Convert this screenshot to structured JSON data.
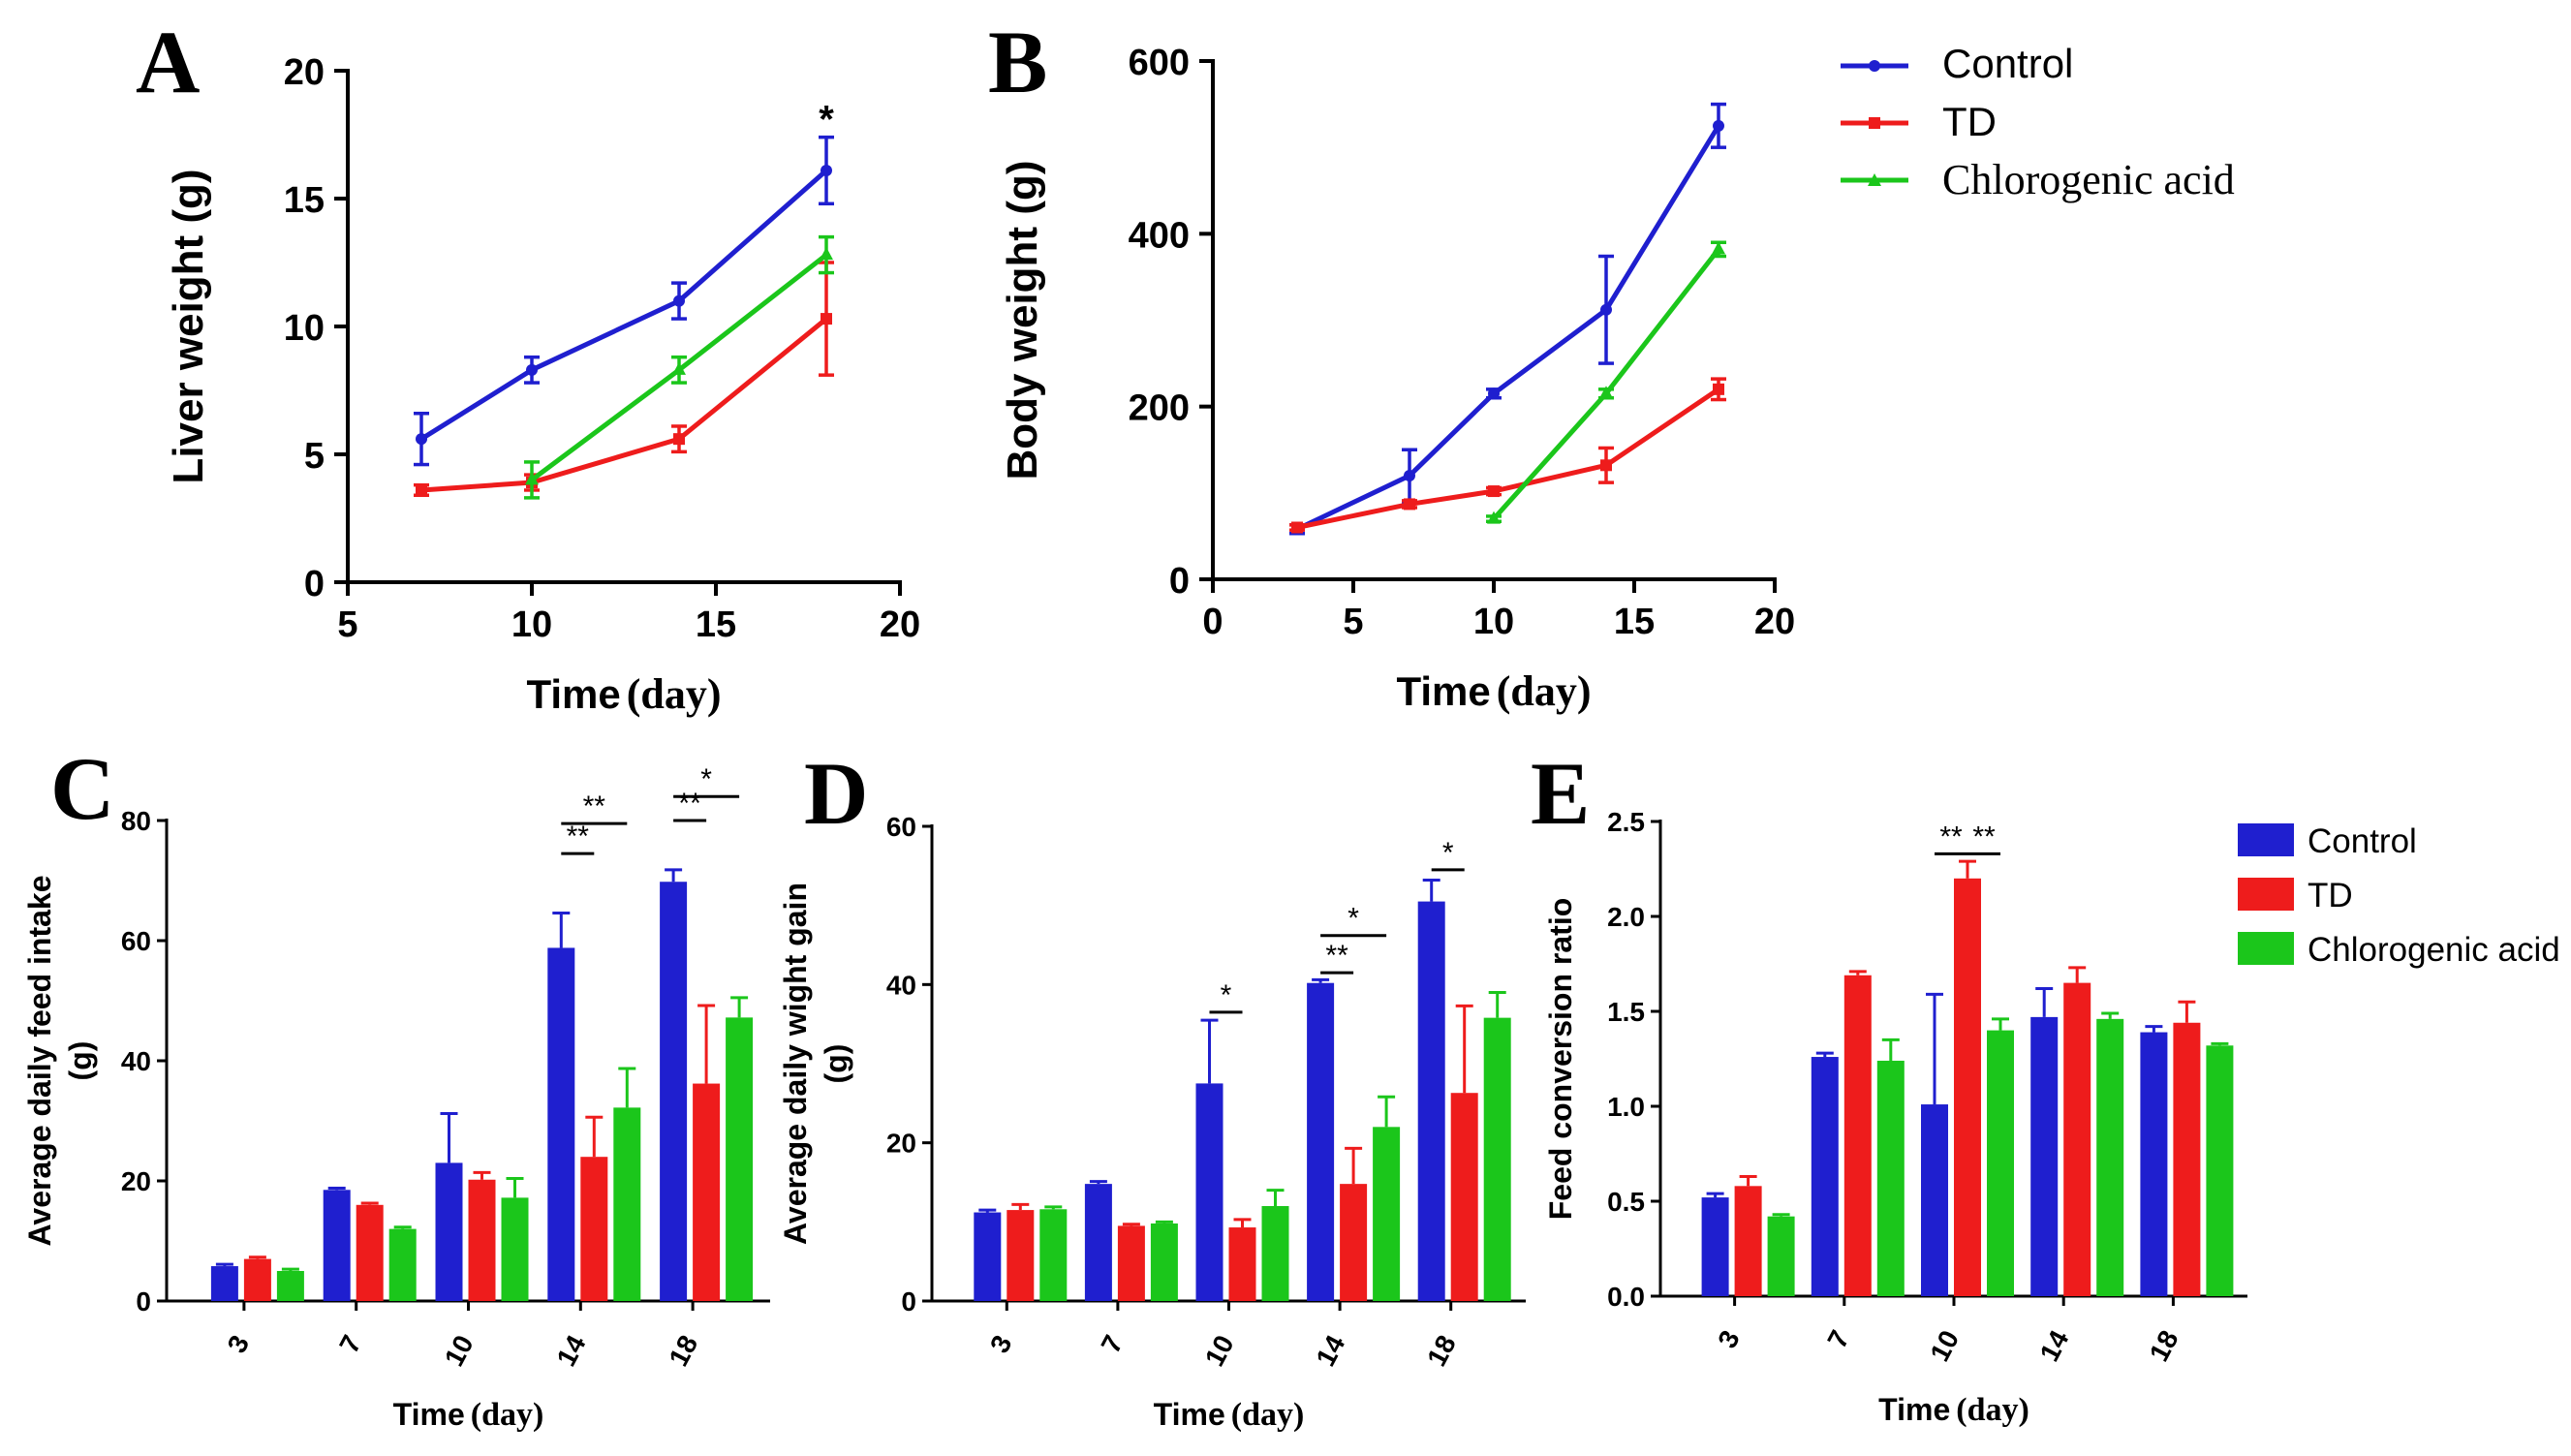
{
  "colors": {
    "control": "#1f1fcf",
    "td": "#ee1c1c",
    "ca": "#1bc61b",
    "axis": "#000000"
  },
  "legend_top": [
    "Control",
    "TD",
    "Chlorogenic acid"
  ],
  "legend_bottom": [
    "Control",
    "TD",
    "Chlorogenic acid"
  ],
  "chart_data": [
    {
      "panel": "A",
      "type": "line",
      "ylabel": "Liver weight (g)",
      "xlabel_main": "Time",
      "xlabel_unit": "(day)",
      "xlim": [
        5,
        20
      ],
      "ylim": [
        0,
        20
      ],
      "xticks": [
        "5",
        "10",
        "15",
        "20"
      ],
      "yticks": [
        "0",
        "5",
        "10",
        "15",
        "20"
      ],
      "series": [
        {
          "name": "Control",
          "x": [
            7,
            10,
            14,
            18
          ],
          "y": [
            5.6,
            8.3,
            11.0,
            16.1
          ],
          "err": [
            1.0,
            0.5,
            0.7,
            1.3
          ]
        },
        {
          "name": "TD",
          "x": [
            7,
            10,
            14,
            18
          ],
          "y": [
            3.6,
            3.9,
            5.6,
            10.3
          ],
          "err": [
            0.2,
            0.3,
            0.5,
            2.2
          ]
        },
        {
          "name": "Chlorogenic acid",
          "x": [
            10,
            14,
            18
          ],
          "y": [
            4.0,
            8.3,
            12.8
          ],
          "err": [
            0.7,
            0.5,
            0.7
          ]
        }
      ],
      "annotations": [
        {
          "x": 18,
          "y": 18.2,
          "text": "*"
        }
      ]
    },
    {
      "panel": "B",
      "type": "line",
      "ylabel": "Body weight (g)",
      "xlabel_main": "Time",
      "xlabel_unit": "(day)",
      "xlim": [
        0,
        20
      ],
      "ylim": [
        0,
        600
      ],
      "xticks": [
        "0",
        "5",
        "10",
        "15",
        "20"
      ],
      "yticks": [
        "0",
        "200",
        "400",
        "600"
      ],
      "series": [
        {
          "name": "Control",
          "x": [
            3,
            7,
            10,
            14,
            18
          ],
          "y": [
            58,
            120,
            215,
            312,
            525
          ],
          "err": [
            5,
            30,
            5,
            62,
            25
          ]
        },
        {
          "name": "TD",
          "x": [
            3,
            7,
            10,
            14,
            18
          ],
          "y": [
            60,
            87,
            102,
            132,
            220
          ],
          "err": [
            3,
            4,
            4,
            20,
            12
          ]
        },
        {
          "name": "Chlorogenic acid",
          "x": [
            10,
            14,
            18
          ],
          "y": [
            70,
            215,
            382
          ],
          "err": [
            3,
            5,
            8
          ]
        }
      ],
      "annotations": []
    },
    {
      "panel": "C",
      "type": "bar",
      "ylabel_line1": "Average daily feed intake",
      "ylabel_line2": "(g)",
      "xlabel_main": "Time",
      "xlabel_unit": "(day)",
      "categories": [
        "3",
        "7",
        "10",
        "14",
        "18"
      ],
      "ylim": [
        0,
        80
      ],
      "yticks": [
        "0",
        "20",
        "40",
        "60",
        "80"
      ],
      "series": [
        {
          "name": "Control",
          "values": [
            5.8,
            18.5,
            23,
            58.8,
            69.8
          ],
          "err": [
            0.3,
            0.3,
            8.2,
            5.8,
            2.0
          ]
        },
        {
          "name": "TD",
          "values": [
            7,
            16,
            20.2,
            24,
            36.2
          ],
          "err": [
            0.3,
            0.3,
            1.2,
            6.6,
            13
          ]
        },
        {
          "name": "Chlorogenic acid",
          "values": [
            5,
            12,
            17.2,
            32.2,
            47.2
          ],
          "err": [
            0.3,
            0.3,
            3.2,
            6.5,
            3.3
          ]
        }
      ],
      "significance": [
        {
          "cat": 3,
          "from": 0,
          "to": 1,
          "level": 74.5,
          "text": "**"
        },
        {
          "cat": 3,
          "from": 0,
          "to": 2,
          "level": 79.5,
          "text": "**"
        },
        {
          "cat": 4,
          "from": 0,
          "to": 1,
          "level": 80,
          "text": "**"
        },
        {
          "cat": 4,
          "from": 0,
          "to": 2,
          "level": 84,
          "text": "*"
        }
      ]
    },
    {
      "panel": "D",
      "type": "bar",
      "ylabel_line1": "Average daily wight gain",
      "ylabel_line2": "(g)",
      "xlabel_main": "Time",
      "xlabel_unit": "(day)",
      "categories": [
        "3",
        "7",
        "10",
        "14",
        "18"
      ],
      "ylim": [
        0,
        60
      ],
      "yticks": [
        "0",
        "20",
        "40",
        "60"
      ],
      "series": [
        {
          "name": "Control",
          "values": [
            11.2,
            14.8,
            27.5,
            40.2,
            50.5
          ],
          "err": [
            0.3,
            0.3,
            8,
            0.4,
            2.7
          ]
        },
        {
          "name": "TD",
          "values": [
            11.5,
            9.5,
            9.3,
            14.8,
            26.3
          ],
          "err": [
            0.7,
            0.2,
            1,
            4.5,
            11
          ]
        },
        {
          "name": "Chlorogenic acid",
          "values": [
            11.6,
            9.8,
            12,
            22,
            35.8
          ],
          "err": [
            0.3,
            0.2,
            2,
            3.8,
            3.2
          ]
        }
      ],
      "significance": [
        {
          "cat": 2,
          "from": 0,
          "to": 1,
          "level": 36.5,
          "text": "*"
        },
        {
          "cat": 3,
          "from": 0,
          "to": 1,
          "level": 41.5,
          "text": "**"
        },
        {
          "cat": 3,
          "from": 0,
          "to": 2,
          "level": 46.2,
          "text": "*"
        },
        {
          "cat": 4,
          "from": 0,
          "to": 1,
          "level": 54.5,
          "text": "*"
        }
      ]
    },
    {
      "panel": "E",
      "type": "bar",
      "ylabel": "Feed conversion ratio",
      "xlabel_main": "Time",
      "xlabel_unit": "(day)",
      "categories": [
        "3",
        "7",
        "10",
        "14",
        "18"
      ],
      "ylim": [
        0,
        2.5
      ],
      "yticks": [
        "0.0",
        "0.5",
        "1.0",
        "1.5",
        "2.0",
        "2.5"
      ],
      "series": [
        {
          "name": "Control",
          "values": [
            0.52,
            1.26,
            1.01,
            1.47,
            1.39
          ],
          "err": [
            0.02,
            0.02,
            0.58,
            0.15,
            0.03
          ]
        },
        {
          "name": "TD",
          "values": [
            0.58,
            1.69,
            2.2,
            1.65,
            1.44
          ],
          "err": [
            0.05,
            0.02,
            0.09,
            0.08,
            0.11
          ]
        },
        {
          "name": "Chlorogenic acid",
          "values": [
            0.42,
            1.24,
            1.4,
            1.46,
            1.32
          ],
          "err": [
            0.01,
            0.11,
            0.06,
            0.03,
            0.01
          ]
        }
      ],
      "significance": [
        {
          "cat": 2,
          "from": 0,
          "to": 1,
          "level": 2.33,
          "text": "**"
        },
        {
          "cat": 2,
          "from": 1,
          "to": 2,
          "level": 2.33,
          "text": "**"
        }
      ]
    }
  ]
}
